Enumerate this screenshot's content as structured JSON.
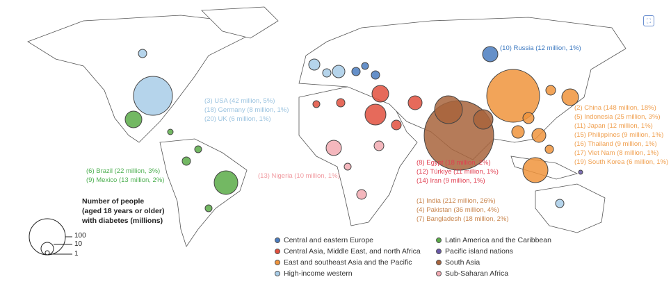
{
  "labels": {
    "russia": [
      "(10) Russia (12 million, 1%)"
    ],
    "western": [
      "(3) USA (42 million, 5%)",
      "(18) Germany (8 million, 1%)",
      "(20) UK (6 million, 1%)"
    ],
    "east_asia": [
      "(2) China (148 million, 18%)",
      "(5) Indonesia (25 million, 3%)",
      "(11) Japan (12 million, 1%)",
      "(15) Philippines (9 million, 1%)",
      "(16) Thailand (9 million, 1%)",
      "(17) Viet Nam (8 million, 1%)",
      "(19) South Korea (6 million, 1%)"
    ],
    "latin": [
      "(6) Brazil (22 million, 3%)",
      "(9) Mexico (13 million, 2%)"
    ],
    "ssa": [
      "(13) Nigeria (10 million, 1%)"
    ],
    "camena": [
      "(8) Egypt (18 million, 2%)",
      "(12) Türkiye (11 million, 1%)",
      "(14) Iran (9 million, 1%)"
    ],
    "south_asia": [
      "(1) India (212 million, 26%)",
      "(4) Pakistan (36 million, 4%)",
      "(7) Bangladesh (18 million, 2%)"
    ]
  },
  "size_legend": {
    "title": [
      "Number of people",
      "(aged 18 years or older)",
      "with diabetes (millions)"
    ],
    "values": [
      "100",
      "10",
      "1"
    ]
  },
  "regions": [
    {
      "name": "Central and eastern Europe",
      "color": "#4a7cc0"
    },
    {
      "name": "Latin America and the Caribbean",
      "color": "#5aac48"
    },
    {
      "name": "Central Asia, Middle East, and north Africa",
      "color": "#e2503e"
    },
    {
      "name": "Pacific island nations",
      "color": "#6858a8"
    },
    {
      "name": "East and southeast Asia and the Pacific",
      "color": "#f0943c"
    },
    {
      "name": "South Asia",
      "color": "#a8643c"
    },
    {
      "name": "High-income western",
      "color": "#a8cde8"
    },
    {
      "name": "Sub-Saharan Africa",
      "color": "#f2aab2"
    }
  ],
  "text_colors": {
    "russia": "#3b78c0",
    "western": "#9cc4e0",
    "east_asia": "#f0a050",
    "latin": "#4caf50",
    "ssa": "#f09aa0",
    "camena": "#e03e50",
    "south_asia": "#c8844c"
  }
}
